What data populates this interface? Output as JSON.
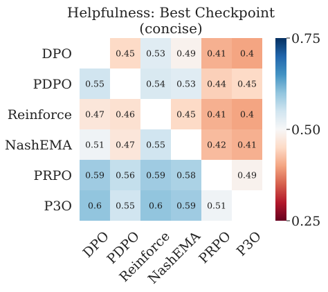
{
  "chart_data": {
    "type": "heatmap",
    "title": "Helpfulness: Best Checkpoint",
    "subtitle": "(concise)",
    "row_labels": [
      "DPO",
      "PDPO",
      "Reinforce",
      "NashEMA",
      "PRPO",
      "P3O"
    ],
    "col_labels": [
      "DPO",
      "PDPO",
      "Reinforce",
      "NashEMA",
      "PRPO",
      "P3O"
    ],
    "values": [
      [
        null,
        0.45,
        0.53,
        0.49,
        0.41,
        0.4
      ],
      [
        0.55,
        null,
        0.54,
        0.53,
        0.44,
        0.45
      ],
      [
        0.47,
        0.46,
        null,
        0.45,
        0.41,
        0.4
      ],
      [
        0.51,
        0.47,
        0.55,
        null,
        0.42,
        0.41
      ],
      [
        0.59,
        0.56,
        0.59,
        0.58,
        null,
        0.49
      ],
      [
        0.6,
        0.55,
        0.6,
        0.59,
        0.51,
        null
      ]
    ],
    "colorbar": {
      "min": 0.25,
      "max": 0.75,
      "center": 0.5,
      "ticks": [
        0.25,
        0.5,
        0.75
      ],
      "tick_labels": [
        "0.25",
        "0.50",
        "0.75"
      ],
      "colormap": "RdBu"
    }
  }
}
